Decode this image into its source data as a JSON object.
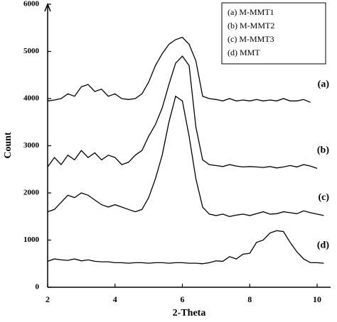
{
  "chart_data": {
    "type": "line",
    "x_label": "2-Theta",
    "y_label": "Count",
    "x": [
      2.0,
      2.2,
      2.4,
      2.6,
      2.8,
      3.0,
      3.2,
      3.4,
      3.6,
      3.8,
      4.0,
      4.2,
      4.4,
      4.6,
      4.8,
      5.0,
      5.2,
      5.4,
      5.6,
      5.8,
      6.0,
      6.2,
      6.4,
      6.6,
      6.8,
      7.0,
      7.2,
      7.4,
      7.6,
      7.8,
      8.0,
      8.2,
      8.4,
      8.6,
      8.8,
      9.0,
      9.2,
      9.4,
      9.6,
      9.8,
      10.0,
      10.2
    ],
    "series": [
      {
        "name": "(a) M-MMT1",
        "tag": "(a)",
        "color": "#000000",
        "values": [
          3950,
          3970,
          4000,
          4100,
          4050,
          4250,
          4300,
          4150,
          4200,
          4050,
          4100,
          4000,
          3980,
          4000,
          4100,
          4350,
          4700,
          4950,
          5150,
          5250,
          5300,
          5150,
          4800,
          4050,
          4000,
          3980,
          3950,
          4000,
          3950,
          3970,
          3950,
          3980,
          3950,
          3970,
          3950,
          4000,
          3950,
          3950,
          3980,
          3920,
          null,
          null
        ]
      },
      {
        "name": "(b) M-MMT2",
        "tag": "(b)",
        "color": "#000000",
        "values": [
          2550,
          2750,
          2600,
          2800,
          2700,
          2900,
          2750,
          2850,
          2700,
          2800,
          2750,
          2600,
          2650,
          2800,
          2900,
          3200,
          3450,
          3800,
          4300,
          4750,
          4900,
          4700,
          3400,
          2700,
          2600,
          2580,
          2560,
          2600,
          2570,
          2550,
          2560,
          2550,
          2540,
          2560,
          2530,
          2550,
          2580,
          2550,
          2600,
          2570,
          2520,
          null
        ]
      },
      {
        "name": "(c) M-MMT3",
        "tag": "(c)",
        "color": "#000000",
        "values": [
          1600,
          1650,
          1800,
          1950,
          1900,
          2000,
          1950,
          1850,
          1750,
          1700,
          1750,
          1700,
          1650,
          1600,
          1650,
          1900,
          2300,
          2800,
          3500,
          4050,
          3950,
          3200,
          2300,
          1700,
          1550,
          1520,
          1550,
          1500,
          1530,
          1550,
          1520,
          1560,
          1600,
          1550,
          1560,
          1600,
          1580,
          1560,
          1620,
          1580,
          1550,
          1520
        ]
      },
      {
        "name": "(d) MMT",
        "tag": "(d)",
        "color": "#000000",
        "values": [
          550,
          600,
          580,
          570,
          600,
          560,
          580,
          550,
          540,
          540,
          520,
          520,
          510,
          520,
          520,
          510,
          520,
          520,
          510,
          520,
          520,
          510,
          510,
          500,
          520,
          560,
          550,
          650,
          600,
          700,
          720,
          950,
          1000,
          1150,
          1200,
          1180,
          950,
          750,
          600,
          520,
          520,
          510
        ]
      }
    ],
    "xlim": [
      2,
      10.4
    ],
    "xticks": [
      2,
      4,
      6,
      8,
      10
    ],
    "ylim": [
      0,
      6000
    ],
    "yticks": [
      0,
      1000,
      2000,
      3000,
      4000,
      5000,
      6000
    ],
    "grid": false,
    "legend": "upper right"
  }
}
